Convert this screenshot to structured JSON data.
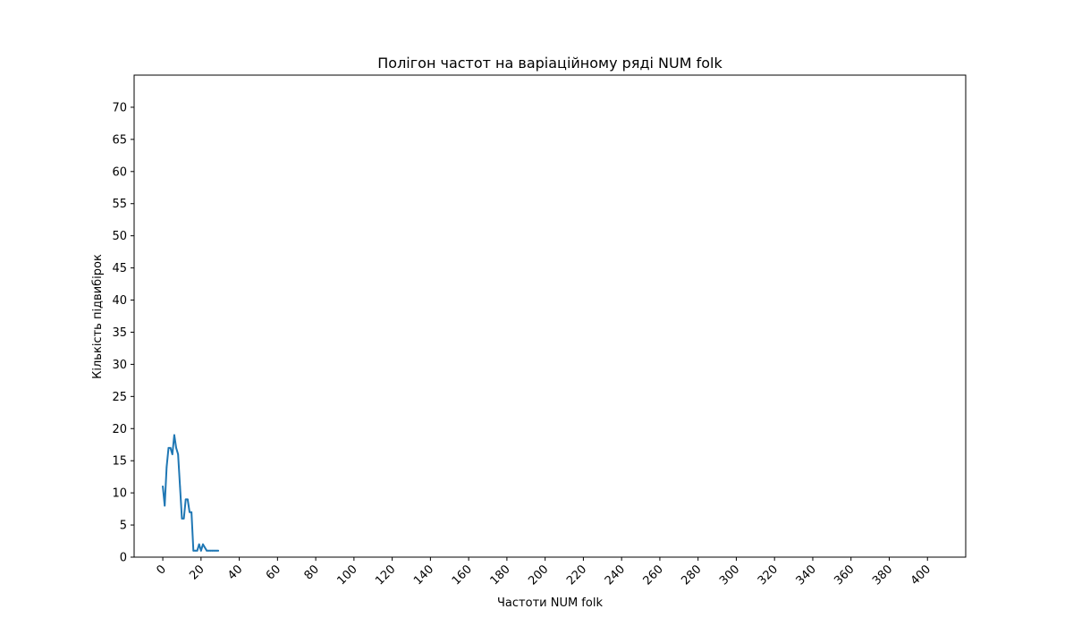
{
  "chart_data": {
    "type": "line",
    "title": "Полігон частот на варіаційному ряді NUM folk",
    "xlabel": "Частоти NUM folk",
    "ylabel": "Кількість підвибірок",
    "xlim": [
      -15,
      420
    ],
    "ylim": [
      0,
      75
    ],
    "x_ticks": [
      0,
      20,
      40,
      60,
      80,
      100,
      120,
      140,
      160,
      180,
      200,
      220,
      240,
      260,
      280,
      300,
      320,
      340,
      360,
      380,
      400
    ],
    "y_ticks": [
      0,
      5,
      10,
      15,
      20,
      25,
      30,
      35,
      40,
      45,
      50,
      55,
      60,
      65,
      70
    ],
    "x_tick_rotation_deg": 45,
    "grid": false,
    "legend": "none",
    "series": [
      {
        "color": "#1f77b4",
        "x": [
          0,
          1,
          2,
          3,
          4,
          5,
          6,
          7,
          8,
          9,
          10,
          11,
          12,
          13,
          14,
          15,
          16,
          17,
          18,
          19,
          20,
          21,
          22,
          23,
          24,
          25,
          26,
          27,
          28,
          29
        ],
        "y": [
          11,
          8,
          14,
          17,
          17,
          16,
          19,
          17,
          16,
          11,
          6,
          6,
          9,
          9,
          7,
          7,
          1,
          1,
          1,
          2,
          1,
          2,
          1.5,
          1,
          1,
          1,
          1,
          1,
          1,
          1
        ]
      }
    ]
  }
}
